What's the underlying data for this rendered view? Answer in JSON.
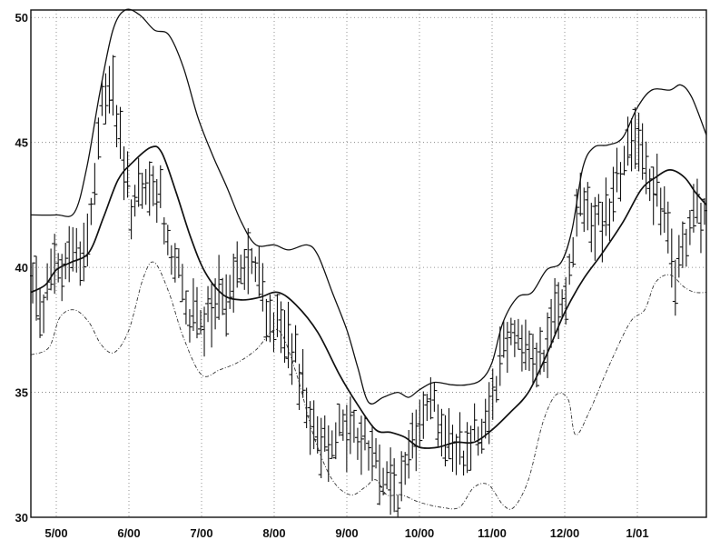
{
  "chart_data": {
    "type": "line",
    "title": "",
    "xlabel": "",
    "ylabel": "",
    "x_tick_labels": [
      "5/00",
      "6/00",
      "7/00",
      "8/00",
      "9/00",
      "10/00",
      "11/00",
      "12/00",
      "1/01"
    ],
    "y_tick_labels": [
      "30",
      "35",
      "40",
      "45",
      "50"
    ],
    "ylim": [
      30,
      50.3
    ],
    "grid": true,
    "x_range_months": [
      4.65,
      13.95
    ],
    "series": [
      {
        "role": "upper-band",
        "style": "solid-thin",
        "points": [
          [
            4.65,
            42.1
          ],
          [
            5.0,
            42.1
          ],
          [
            5.25,
            42.2
          ],
          [
            5.42,
            44.0
          ],
          [
            5.6,
            47.0
          ],
          [
            5.78,
            49.5
          ],
          [
            5.95,
            50.3
          ],
          [
            6.15,
            50.1
          ],
          [
            6.35,
            49.5
          ],
          [
            6.55,
            49.3
          ],
          [
            6.75,
            48.0
          ],
          [
            6.95,
            46.0
          ],
          [
            7.15,
            44.5
          ],
          [
            7.35,
            43.2
          ],
          [
            7.55,
            41.8
          ],
          [
            7.75,
            40.9
          ],
          [
            8.0,
            40.9
          ],
          [
            8.2,
            40.7
          ],
          [
            8.45,
            40.9
          ],
          [
            8.6,
            40.5
          ],
          [
            8.8,
            39.0
          ],
          [
            9.0,
            37.5
          ],
          [
            9.15,
            36.0
          ],
          [
            9.3,
            34.6
          ],
          [
            9.5,
            34.8
          ],
          [
            9.7,
            35.0
          ],
          [
            9.85,
            34.8
          ],
          [
            10.0,
            35.1
          ],
          [
            10.2,
            35.4
          ],
          [
            10.45,
            35.3
          ],
          [
            10.65,
            35.3
          ],
          [
            10.85,
            35.5
          ],
          [
            11.0,
            36.2
          ],
          [
            11.15,
            37.8
          ],
          [
            11.35,
            38.8
          ],
          [
            11.55,
            39.0
          ],
          [
            11.75,
            39.9
          ],
          [
            11.95,
            40.2
          ],
          [
            12.1,
            41.5
          ],
          [
            12.25,
            44.0
          ],
          [
            12.4,
            44.8
          ],
          [
            12.6,
            44.9
          ],
          [
            12.8,
            45.2
          ],
          [
            13.0,
            46.4
          ],
          [
            13.2,
            47.1
          ],
          [
            13.45,
            47.1
          ],
          [
            13.6,
            47.3
          ],
          [
            13.75,
            46.8
          ],
          [
            13.95,
            45.3
          ]
        ]
      },
      {
        "role": "moving-average",
        "style": "solid-thick",
        "points": [
          [
            4.65,
            39.0
          ],
          [
            4.85,
            39.3
          ],
          [
            5.0,
            39.9
          ],
          [
            5.2,
            40.2
          ],
          [
            5.45,
            40.6
          ],
          [
            5.65,
            42.0
          ],
          [
            5.85,
            43.5
          ],
          [
            6.05,
            44.2
          ],
          [
            6.3,
            44.8
          ],
          [
            6.45,
            44.6
          ],
          [
            6.65,
            43.0
          ],
          [
            6.85,
            41.2
          ],
          [
            7.05,
            39.8
          ],
          [
            7.3,
            38.9
          ],
          [
            7.55,
            38.7
          ],
          [
            7.8,
            38.8
          ],
          [
            8.05,
            39.0
          ],
          [
            8.3,
            38.5
          ],
          [
            8.6,
            37.4
          ],
          [
            8.9,
            35.7
          ],
          [
            9.15,
            34.5
          ],
          [
            9.4,
            33.5
          ],
          [
            9.6,
            33.4
          ],
          [
            9.8,
            33.2
          ],
          [
            10.0,
            32.8
          ],
          [
            10.25,
            32.8
          ],
          [
            10.5,
            33.0
          ],
          [
            10.75,
            33.0
          ],
          [
            11.0,
            33.5
          ],
          [
            11.25,
            34.2
          ],
          [
            11.5,
            35.0
          ],
          [
            11.75,
            36.5
          ],
          [
            12.0,
            38.2
          ],
          [
            12.25,
            39.5
          ],
          [
            12.5,
            40.5
          ],
          [
            12.8,
            41.8
          ],
          [
            13.05,
            43.1
          ],
          [
            13.25,
            43.6
          ],
          [
            13.45,
            43.9
          ],
          [
            13.65,
            43.6
          ],
          [
            13.8,
            43.0
          ],
          [
            13.95,
            42.5
          ]
        ]
      },
      {
        "role": "lower-band",
        "style": "dash-dot",
        "points": [
          [
            4.65,
            36.5
          ],
          [
            4.9,
            36.8
          ],
          [
            5.05,
            38.0
          ],
          [
            5.25,
            38.3
          ],
          [
            5.45,
            37.8
          ],
          [
            5.62,
            36.9
          ],
          [
            5.8,
            36.6
          ],
          [
            6.0,
            37.5
          ],
          [
            6.2,
            39.6
          ],
          [
            6.35,
            40.2
          ],
          [
            6.55,
            39.0
          ],
          [
            6.75,
            37.2
          ],
          [
            7.0,
            35.7
          ],
          [
            7.25,
            35.9
          ],
          [
            7.5,
            36.2
          ],
          [
            7.75,
            36.7
          ],
          [
            8.05,
            37.5
          ],
          [
            8.3,
            35.8
          ],
          [
            8.55,
            33.2
          ],
          [
            8.8,
            31.5
          ],
          [
            9.05,
            30.9
          ],
          [
            9.25,
            31.2
          ],
          [
            9.4,
            31.5
          ],
          [
            9.55,
            30.9
          ],
          [
            9.75,
            30.9
          ],
          [
            10.0,
            30.6
          ],
          [
            10.3,
            30.4
          ],
          [
            10.55,
            30.4
          ],
          [
            10.75,
            31.2
          ],
          [
            10.95,
            31.3
          ],
          [
            11.15,
            30.5
          ],
          [
            11.3,
            30.4
          ],
          [
            11.5,
            31.5
          ],
          [
            11.7,
            33.8
          ],
          [
            11.88,
            34.9
          ],
          [
            12.05,
            34.7
          ],
          [
            12.15,
            33.3
          ],
          [
            12.35,
            34.3
          ],
          [
            12.6,
            36.0
          ],
          [
            12.9,
            37.8
          ],
          [
            13.1,
            38.3
          ],
          [
            13.25,
            39.4
          ],
          [
            13.45,
            39.7
          ],
          [
            13.65,
            39.2
          ],
          [
            13.8,
            39.0
          ],
          [
            13.95,
            39.0
          ]
        ]
      }
    ],
    "price_bar_anchors": [
      [
        4.65,
        39.5
      ],
      [
        4.8,
        38.8
      ],
      [
        4.95,
        40.0
      ],
      [
        5.05,
        39.8
      ],
      [
        5.2,
        40.8
      ],
      [
        5.35,
        40.3
      ],
      [
        5.45,
        41.5
      ],
      [
        5.55,
        44.0
      ],
      [
        5.65,
        47.0
      ],
      [
        5.75,
        47.8
      ],
      [
        5.85,
        45.5
      ],
      [
        5.95,
        43.0
      ],
      [
        6.1,
        42.5
      ],
      [
        6.25,
        42.8
      ],
      [
        6.4,
        43.0
      ],
      [
        6.55,
        41.0
      ],
      [
        6.7,
        39.5
      ],
      [
        6.85,
        38.0
      ],
      [
        7.0,
        37.5
      ],
      [
        7.15,
        38.2
      ],
      [
        7.3,
        38.9
      ],
      [
        7.45,
        39.5
      ],
      [
        7.6,
        40.3
      ],
      [
        7.75,
        39.8
      ],
      [
        7.85,
        38.8
      ],
      [
        8.0,
        38.0
      ],
      [
        8.15,
        37.0
      ],
      [
        8.3,
        36.2
      ],
      [
        8.4,
        35.6
      ],
      [
        8.5,
        33.8
      ],
      [
        8.65,
        33.0
      ],
      [
        8.8,
        33.3
      ],
      [
        8.95,
        33.6
      ],
      [
        9.1,
        33.4
      ],
      [
        9.25,
        33.0
      ],
      [
        9.4,
        32.3
      ],
      [
        9.55,
        31.4
      ],
      [
        9.7,
        31.0
      ],
      [
        9.8,
        31.8
      ],
      [
        9.95,
        33.5
      ],
      [
        10.05,
        34.8
      ],
      [
        10.2,
        34.6
      ],
      [
        10.3,
        33.8
      ],
      [
        10.45,
        32.8
      ],
      [
        10.6,
        32.6
      ],
      [
        10.75,
        33.4
      ],
      [
        10.9,
        34.0
      ],
      [
        11.05,
        35.5
      ],
      [
        11.15,
        36.8
      ],
      [
        11.3,
        37.5
      ],
      [
        11.45,
        37.0
      ],
      [
        11.6,
        36.3
      ],
      [
        11.75,
        36.5
      ],
      [
        11.85,
        38.2
      ],
      [
        12.0,
        38.5
      ],
      [
        12.1,
        40.5
      ],
      [
        12.2,
        42.5
      ],
      [
        12.3,
        43.2
      ],
      [
        12.4,
        41.8
      ],
      [
        12.55,
        42.0
      ],
      [
        12.7,
        43.5
      ],
      [
        12.85,
        45.0
      ],
      [
        13.0,
        45.5
      ],
      [
        13.1,
        44.5
      ],
      [
        13.25,
        43.0
      ],
      [
        13.35,
        42.2
      ],
      [
        13.45,
        40.5
      ],
      [
        13.55,
        39.5
      ],
      [
        13.65,
        40.6
      ],
      [
        13.75,
        41.7
      ],
      [
        13.85,
        42.0
      ],
      [
        13.95,
        41.9
      ]
    ],
    "price_bar_count": 185,
    "price_bar_seed": 7
  }
}
